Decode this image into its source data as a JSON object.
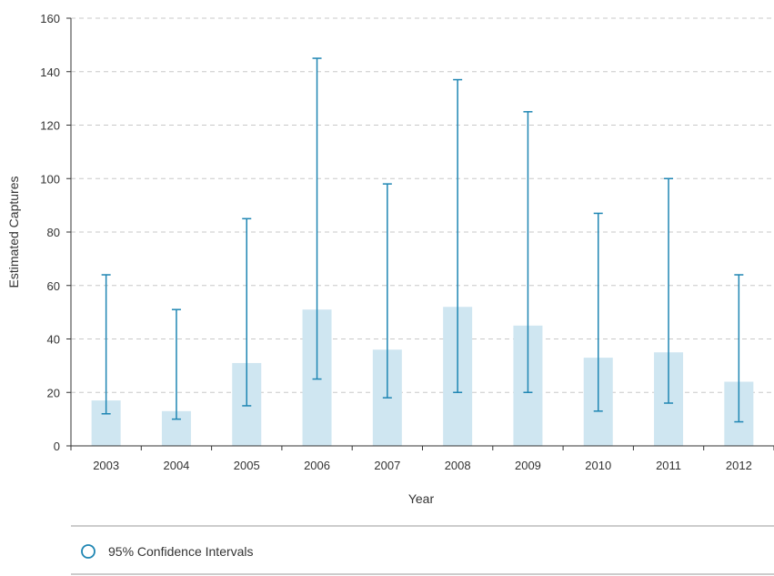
{
  "chart_data": {
    "type": "bar",
    "categories": [
      "2003",
      "2004",
      "2005",
      "2006",
      "2007",
      "2008",
      "2009",
      "2010",
      "2011",
      "2012"
    ],
    "values": [
      17,
      13,
      31,
      51,
      36,
      52,
      45,
      33,
      35,
      24
    ],
    "ci_lower": [
      12,
      10,
      15,
      25,
      18,
      20,
      20,
      13,
      16,
      9
    ],
    "ci_upper": [
      64,
      51,
      85,
      145,
      98,
      137,
      125,
      87,
      100,
      64
    ],
    "xlabel": "Year",
    "ylabel": "Estimated Captures",
    "ylim": [
      0,
      160
    ],
    "yticks": [
      "0",
      "20",
      "40",
      "60",
      "80",
      "100",
      "120",
      "140",
      "160"
    ],
    "grid": true,
    "legend": {
      "placement": "bottom",
      "entries": [
        "95% Confidence Intervals"
      ]
    },
    "colors": {
      "bar": "#cfe6f1",
      "error_bar": "#1f86b3",
      "grid": "#c8c8c8",
      "axis": "#333333"
    }
  }
}
